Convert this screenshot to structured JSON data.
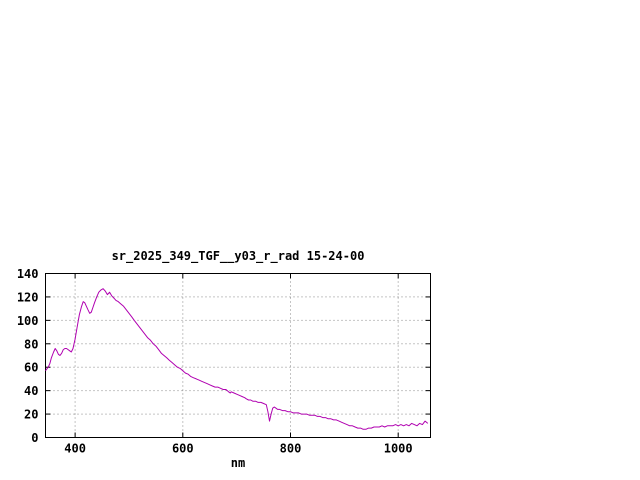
{
  "colors": {
    "background": "#ffffff",
    "axis": "#000000",
    "grid": "#8a8a8a",
    "text": "#000000"
  },
  "chart_data": {
    "type": "line",
    "title": "sr_2025_349_TGF__y03_r_rad 15-24-00",
    "xlabel": "nm",
    "ylabel": "",
    "xlim": [
      345,
      1060
    ],
    "ylim": [
      0,
      140
    ],
    "x_ticks": [
      400,
      600,
      800,
      1000
    ],
    "y_ticks": [
      0,
      20,
      40,
      60,
      80,
      100,
      120,
      140
    ],
    "grid": true,
    "legend": "none",
    "line_color": "#b000b0",
    "series": [
      {
        "points": [
          [
            345,
            57
          ],
          [
            350,
            60
          ],
          [
            353,
            63
          ],
          [
            356,
            68
          ],
          [
            360,
            73
          ],
          [
            363,
            76
          ],
          [
            366,
            74
          ],
          [
            369,
            71
          ],
          [
            372,
            70
          ],
          [
            375,
            72
          ],
          [
            378,
            75
          ],
          [
            381,
            76
          ],
          [
            384,
            76
          ],
          [
            387,
            75
          ],
          [
            390,
            74
          ],
          [
            393,
            73
          ],
          [
            396,
            76
          ],
          [
            400,
            84
          ],
          [
            404,
            95
          ],
          [
            408,
            105
          ],
          [
            412,
            112
          ],
          [
            415,
            116
          ],
          [
            418,
            115
          ],
          [
            421,
            112
          ],
          [
            424,
            109
          ],
          [
            427,
            106
          ],
          [
            430,
            107
          ],
          [
            433,
            111
          ],
          [
            436,
            115
          ],
          [
            440,
            120
          ],
          [
            444,
            124
          ],
          [
            448,
            126
          ],
          [
            452,
            127
          ],
          [
            456,
            125
          ],
          [
            460,
            122
          ],
          [
            464,
            124
          ],
          [
            468,
            121
          ],
          [
            472,
            119
          ],
          [
            476,
            117
          ],
          [
            480,
            116
          ],
          [
            485,
            114
          ],
          [
            490,
            112
          ],
          [
            495,
            109
          ],
          [
            500,
            106
          ],
          [
            505,
            103
          ],
          [
            510,
            100
          ],
          [
            515,
            97
          ],
          [
            520,
            94
          ],
          [
            525,
            91
          ],
          [
            530,
            88
          ],
          [
            535,
            85
          ],
          [
            540,
            83
          ],
          [
            545,
            80
          ],
          [
            550,
            78
          ],
          [
            555,
            75
          ],
          [
            560,
            72
          ],
          [
            565,
            70
          ],
          [
            570,
            68
          ],
          [
            575,
            66
          ],
          [
            580,
            64
          ],
          [
            585,
            62
          ],
          [
            590,
            60
          ],
          [
            595,
            59
          ],
          [
            600,
            57
          ],
          [
            605,
            55
          ],
          [
            610,
            54
          ],
          [
            615,
            52
          ],
          [
            620,
            51
          ],
          [
            625,
            50
          ],
          [
            630,
            49
          ],
          [
            635,
            48
          ],
          [
            640,
            47
          ],
          [
            645,
            46
          ],
          [
            650,
            45
          ],
          [
            655,
            44
          ],
          [
            660,
            43
          ],
          [
            665,
            43
          ],
          [
            670,
            42
          ],
          [
            675,
            41
          ],
          [
            680,
            41
          ],
          [
            685,
            39
          ],
          [
            688,
            38
          ],
          [
            690,
            39
          ],
          [
            695,
            38
          ],
          [
            700,
            37
          ],
          [
            705,
            36
          ],
          [
            710,
            35
          ],
          [
            715,
            34
          ],
          [
            718,
            33
          ],
          [
            722,
            32
          ],
          [
            726,
            32
          ],
          [
            730,
            31
          ],
          [
            735,
            31
          ],
          [
            740,
            30
          ],
          [
            745,
            30
          ],
          [
            750,
            29
          ],
          [
            755,
            28
          ],
          [
            758,
            22
          ],
          [
            761,
            14
          ],
          [
            764,
            20
          ],
          [
            767,
            25
          ],
          [
            770,
            26
          ],
          [
            773,
            25
          ],
          [
            776,
            24
          ],
          [
            780,
            24
          ],
          [
            785,
            23
          ],
          [
            790,
            23
          ],
          [
            795,
            22
          ],
          [
            800,
            22
          ],
          [
            805,
            21
          ],
          [
            810,
            21
          ],
          [
            815,
            21
          ],
          [
            820,
            20
          ],
          [
            825,
            20
          ],
          [
            830,
            20
          ],
          [
            835,
            19
          ],
          [
            840,
            19
          ],
          [
            845,
            19
          ],
          [
            850,
            18
          ],
          [
            855,
            18
          ],
          [
            860,
            17
          ],
          [
            865,
            17
          ],
          [
            870,
            16
          ],
          [
            875,
            16
          ],
          [
            880,
            15
          ],
          [
            885,
            15
          ],
          [
            890,
            14
          ],
          [
            895,
            13
          ],
          [
            900,
            12
          ],
          [
            905,
            11
          ],
          [
            910,
            10
          ],
          [
            915,
            10
          ],
          [
            920,
            9
          ],
          [
            925,
            8
          ],
          [
            930,
            8
          ],
          [
            935,
            7
          ],
          [
            940,
            7
          ],
          [
            945,
            8
          ],
          [
            950,
            8
          ],
          [
            955,
            9
          ],
          [
            960,
            9
          ],
          [
            965,
            9
          ],
          [
            970,
            10
          ],
          [
            975,
            9
          ],
          [
            980,
            10
          ],
          [
            985,
            10
          ],
          [
            990,
            10
          ],
          [
            995,
            11
          ],
          [
            1000,
            10
          ],
          [
            1005,
            11
          ],
          [
            1010,
            10
          ],
          [
            1015,
            11
          ],
          [
            1020,
            10
          ],
          [
            1025,
            12
          ],
          [
            1030,
            11
          ],
          [
            1035,
            10
          ],
          [
            1040,
            12
          ],
          [
            1045,
            11
          ],
          [
            1050,
            14
          ],
          [
            1055,
            12
          ]
        ]
      }
    ]
  }
}
